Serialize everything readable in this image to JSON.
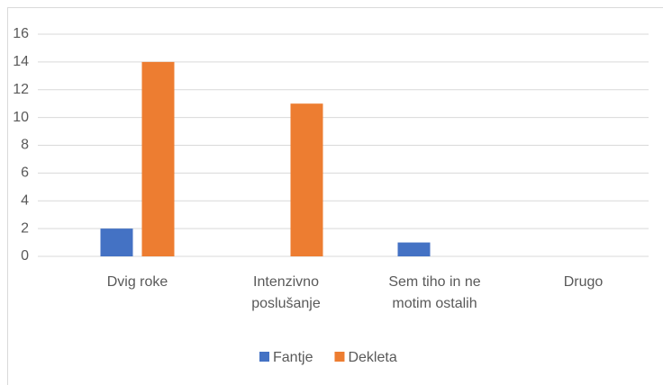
{
  "chart_data": {
    "type": "bar",
    "categories": [
      "Dvig roke",
      "Intenzivno poslušanje",
      "Sem tiho in ne motim ostalih",
      "Drugo"
    ],
    "series": [
      {
        "name": "Fantje",
        "color": "#4472c4",
        "values": [
          2,
          0,
          1,
          0
        ]
      },
      {
        "name": "Dekleta",
        "color": "#ed7d31",
        "values": [
          14,
          11,
          0,
          0
        ]
      }
    ],
    "ylim": [
      0,
      16
    ],
    "yticks": [
      0,
      2,
      4,
      6,
      8,
      10,
      12,
      14,
      16
    ],
    "grid": true,
    "legend": "bottom"
  }
}
